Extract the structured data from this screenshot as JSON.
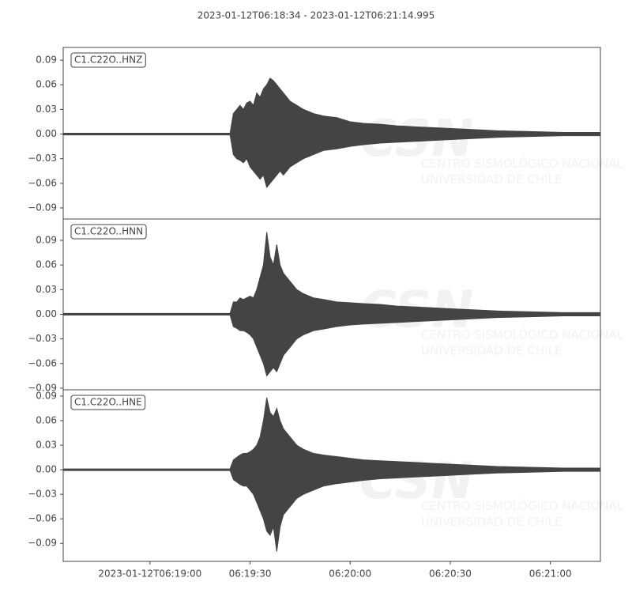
{
  "chart_data": [
    {
      "type": "envelope",
      "title": "2023-01-12T06:18:34  -  2023-01-12T06:21:14.995",
      "label": "C1.C22O..HNZ",
      "color": "#444444",
      "watermark": {
        "logo": "CSN",
        "lines": [
          "CENTRO SISMOLÓGICO NACIONAL",
          "UNIVERSIDAD DE CHILE"
        ]
      },
      "xlim": [
        0,
        160.995
      ],
      "x": [
        0,
        50,
        51,
        52,
        53,
        54,
        55,
        56,
        57,
        58,
        59,
        60,
        61,
        62,
        63,
        64,
        65,
        66,
        68,
        70,
        72,
        75,
        78,
        82,
        86,
        90,
        95,
        100,
        105,
        110,
        115,
        120,
        130,
        140,
        150,
        161
      ],
      "upper": [
        0.001,
        0.001,
        0.025,
        0.03,
        0.035,
        0.03,
        0.038,
        0.04,
        0.035,
        0.05,
        0.045,
        0.055,
        0.06,
        0.068,
        0.065,
        0.06,
        0.055,
        0.05,
        0.04,
        0.035,
        0.03,
        0.025,
        0.022,
        0.02,
        0.015,
        0.013,
        0.012,
        0.01,
        0.009,
        0.008,
        0.007,
        0.006,
        0.004,
        0.003,
        0.002,
        0.002
      ],
      "lower": [
        -0.001,
        -0.001,
        -0.025,
        -0.03,
        -0.032,
        -0.035,
        -0.03,
        -0.04,
        -0.045,
        -0.05,
        -0.055,
        -0.05,
        -0.065,
        -0.06,
        -0.055,
        -0.05,
        -0.045,
        -0.05,
        -0.04,
        -0.035,
        -0.03,
        -0.025,
        -0.02,
        -0.018,
        -0.015,
        -0.013,
        -0.011,
        -0.01,
        -0.009,
        -0.008,
        -0.007,
        -0.006,
        -0.004,
        -0.003,
        -0.002,
        -0.002
      ],
      "ylim": [
        -0.1035,
        0.1055
      ],
      "yticks": [
        {
          "value": -0.09,
          "label": "−0.09"
        },
        {
          "value": -0.06,
          "label": "−0.06"
        },
        {
          "value": -0.03,
          "label": "−0.03"
        },
        {
          "value": 0,
          "label": "0.00"
        },
        {
          "value": 0.03,
          "label": "0.03"
        },
        {
          "value": 0.06,
          "label": "0.06"
        },
        {
          "value": 0.09,
          "label": "0.09"
        }
      ]
    },
    {
      "type": "envelope",
      "label": "C1.C22O..HNN",
      "color": "#444444",
      "watermark": {
        "logo": "CSN",
        "lines": [
          "CENTRO SISMOLÓGICO NACIONAL",
          "UNIVERSIDAD DE CHILE"
        ]
      },
      "xlim": [
        0,
        160.995
      ],
      "x": [
        0,
        50,
        51,
        52,
        53,
        54,
        55,
        56,
        57,
        58,
        59,
        60,
        61,
        62,
        63,
        64,
        65,
        66,
        68,
        70,
        72,
        75,
        78,
        82,
        86,
        90,
        95,
        100,
        105,
        110,
        115,
        120,
        130,
        140,
        150,
        161
      ],
      "upper": [
        0.001,
        0.001,
        0.015,
        0.015,
        0.02,
        0.018,
        0.02,
        0.022,
        0.02,
        0.03,
        0.045,
        0.06,
        0.1,
        0.07,
        0.06,
        0.085,
        0.06,
        0.05,
        0.04,
        0.03,
        0.025,
        0.02,
        0.018,
        0.015,
        0.014,
        0.013,
        0.012,
        0.01,
        0.009,
        0.008,
        0.007,
        0.006,
        0.004,
        0.003,
        0.002,
        0.002
      ],
      "lower": [
        -0.001,
        -0.001,
        -0.015,
        -0.017,
        -0.02,
        -0.02,
        -0.022,
        -0.025,
        -0.03,
        -0.04,
        -0.05,
        -0.06,
        -0.075,
        -0.07,
        -0.065,
        -0.07,
        -0.06,
        -0.05,
        -0.04,
        -0.03,
        -0.025,
        -0.02,
        -0.018,
        -0.015,
        -0.013,
        -0.012,
        -0.011,
        -0.01,
        -0.009,
        -0.008,
        -0.007,
        -0.006,
        -0.004,
        -0.003,
        -0.002,
        -0.002
      ],
      "ylim": [
        -0.092,
        0.116
      ],
      "yticks": [
        {
          "value": -0.09,
          "label": "−0.09"
        },
        {
          "value": -0.06,
          "label": "−0.06"
        },
        {
          "value": -0.03,
          "label": "−0.03"
        },
        {
          "value": 0,
          "label": "0.00"
        },
        {
          "value": 0.03,
          "label": "0.03"
        },
        {
          "value": 0.06,
          "label": "0.06"
        },
        {
          "value": 0.09,
          "label": "0.09"
        }
      ]
    },
    {
      "type": "envelope",
      "label": "C1.C22O..HNE",
      "color": "#444444",
      "watermark": {
        "logo": "CSN",
        "lines": [
          "CENTRO SISMOLÓGICO NACIONAL",
          "UNIVERSIDAD DE CHILE"
        ]
      },
      "xlim": [
        0,
        160.995
      ],
      "x": [
        0,
        50,
        51,
        52,
        53,
        54,
        55,
        56,
        57,
        58,
        59,
        60,
        61,
        62,
        63,
        64,
        65,
        66,
        68,
        70,
        72,
        75,
        78,
        82,
        86,
        90,
        95,
        100,
        105,
        110,
        115,
        120,
        130,
        140,
        150,
        161
      ],
      "upper": [
        0.001,
        0.001,
        0.012,
        0.015,
        0.018,
        0.02,
        0.02,
        0.022,
        0.025,
        0.03,
        0.04,
        0.06,
        0.088,
        0.07,
        0.065,
        0.075,
        0.06,
        0.05,
        0.04,
        0.03,
        0.025,
        0.02,
        0.018,
        0.016,
        0.014,
        0.012,
        0.011,
        0.01,
        0.009,
        0.008,
        0.007,
        0.006,
        0.004,
        0.003,
        0.002,
        0.002
      ],
      "lower": [
        -0.001,
        -0.001,
        -0.012,
        -0.015,
        -0.018,
        -0.02,
        -0.02,
        -0.025,
        -0.03,
        -0.04,
        -0.05,
        -0.06,
        -0.075,
        -0.08,
        -0.07,
        -0.1,
        -0.07,
        -0.055,
        -0.045,
        -0.035,
        -0.03,
        -0.025,
        -0.02,
        -0.017,
        -0.015,
        -0.013,
        -0.011,
        -0.01,
        -0.009,
        -0.008,
        -0.007,
        -0.006,
        -0.004,
        -0.003,
        -0.002,
        -0.002
      ],
      "ylim": [
        -0.112,
        0.0977
      ],
      "yticks": [
        {
          "value": -0.09,
          "label": "−0.09"
        },
        {
          "value": -0.06,
          "label": "−0.06"
        },
        {
          "value": -0.03,
          "label": "−0.03"
        },
        {
          "value": 0,
          "label": "0.00"
        },
        {
          "value": 0.03,
          "label": "0.03"
        },
        {
          "value": 0.06,
          "label": "0.06"
        },
        {
          "value": 0.09,
          "label": "0.09"
        }
      ],
      "xticks": [
        {
          "value": 26,
          "label": "2023-01-12T06:19:00"
        },
        {
          "value": 56,
          "label": "06:19:30"
        },
        {
          "value": 86,
          "label": "06:20:00"
        },
        {
          "value": 116,
          "label": "06:20:30"
        },
        {
          "value": 146,
          "label": "06:21:00"
        }
      ]
    }
  ]
}
